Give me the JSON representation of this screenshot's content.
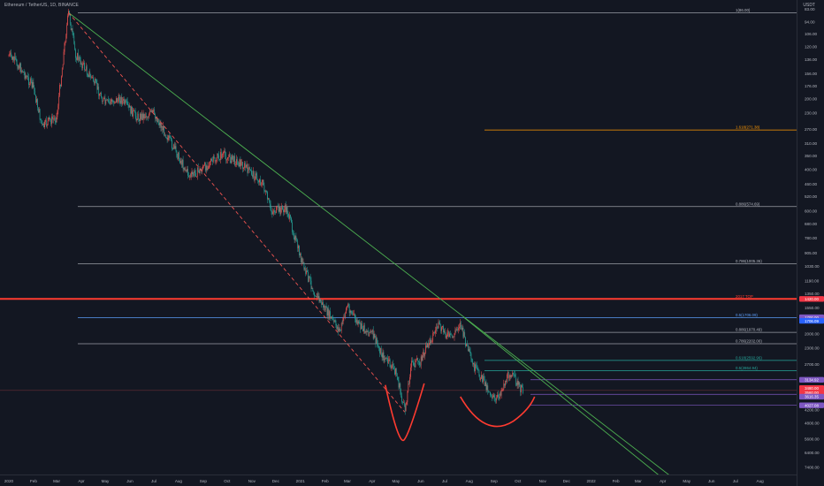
{
  "header": {
    "symbol_line": "Ethereum / TetherUS, 1D, BINANCE",
    "currency": "USDT"
  },
  "colors": {
    "background": "#131722",
    "candle_up": "#26a69a",
    "candle_down": "#ef5350",
    "trendline": "#4caf50",
    "dashed_trendline": "#ef5350",
    "horizontal_red": "#ff3b30",
    "fib_gray": "#b2b5be",
    "fib_orange": "#ff9800",
    "fib_teal": "#26a69a",
    "fib_blue": "#5b9cf6",
    "cup_curve": "#ff3b30",
    "purple_label": "#7e57c2"
  },
  "chart_data": {
    "type": "candlestick",
    "title": "Ethereum / TetherUS, 1D, BINANCE",
    "scale": "log",
    "y_axis_inverted": true,
    "grid": false,
    "xlabel": "",
    "ylabel": "",
    "x_ticks": [
      "2020",
      "Feb",
      "Mar",
      "Apr",
      "May",
      "Jun",
      "Jul",
      "Aug",
      "Sep",
      "Oct",
      "Nov",
      "Dec",
      "2021",
      "Feb",
      "Mar",
      "Apr",
      "May",
      "Jun",
      "Jul",
      "Aug",
      "Sep",
      "Oct",
      "Nov",
      "Dec",
      "2022",
      "Feb",
      "Mar",
      "Apr",
      "May",
      "Jun",
      "Jul",
      "Aug"
    ],
    "y_ticks": [
      "83.00",
      "94.00",
      "106.00",
      "120.00",
      "136.00",
      "156.00",
      "176.00",
      "200.00",
      "230.00",
      "270.00",
      "310.00",
      "350.00",
      "400.00",
      "460.00",
      "520.00",
      "600.00",
      "680.00",
      "780.00",
      "905.00",
      "1030.00",
      "1190.00",
      "1350.00",
      "1550.00",
      "1750.00",
      "2000.00",
      "2300.00",
      "2700.00",
      "3150.00",
      "3600.00",
      "4200.00",
      "4800.00",
      "5600.00",
      "6400.00",
      "7400.00"
    ],
    "price_path": [
      {
        "date": "2020-01-01",
        "close": 130
      },
      {
        "date": "2020-01-14",
        "close": 145
      },
      {
        "date": "2020-02-01",
        "close": 180
      },
      {
        "date": "2020-02-12",
        "close": 265
      },
      {
        "date": "2020-02-20",
        "close": 250
      },
      {
        "date": "2020-03-01",
        "close": 240
      },
      {
        "date": "2020-03-12",
        "close": 110
      },
      {
        "date": "2020-03-16",
        "close": 86
      },
      {
        "date": "2020-03-25",
        "close": 130
      },
      {
        "date": "2020-04-15",
        "close": 165
      },
      {
        "date": "2020-05-01",
        "close": 210
      },
      {
        "date": "2020-05-20",
        "close": 200
      },
      {
        "date": "2020-06-10",
        "close": 240
      },
      {
        "date": "2020-07-01",
        "close": 230
      },
      {
        "date": "2020-07-25",
        "close": 320
      },
      {
        "date": "2020-08-15",
        "close": 430
      },
      {
        "date": "2020-09-03",
        "close": 390
      },
      {
        "date": "2020-09-25",
        "close": 345
      },
      {
        "date": "2020-10-20",
        "close": 380
      },
      {
        "date": "2020-11-15",
        "close": 460
      },
      {
        "date": "2020-11-25",
        "close": 600
      },
      {
        "date": "2020-12-15",
        "close": 590
      },
      {
        "date": "2021-01-05",
        "close": 1050
      },
      {
        "date": "2021-01-20",
        "close": 1350
      },
      {
        "date": "2021-02-10",
        "close": 1750
      },
      {
        "date": "2021-02-20",
        "close": 1950
      },
      {
        "date": "2021-03-01",
        "close": 1500
      },
      {
        "date": "2021-03-15",
        "close": 1850
      },
      {
        "date": "2021-04-01",
        "close": 2000
      },
      {
        "date": "2021-04-15",
        "close": 2500
      },
      {
        "date": "2021-05-01",
        "close": 2900
      },
      {
        "date": "2021-05-12",
        "close": 4300
      },
      {
        "date": "2021-05-20",
        "close": 2700
      },
      {
        "date": "2021-06-01",
        "close": 2600
      },
      {
        "date": "2021-06-22",
        "close": 1850
      },
      {
        "date": "2021-07-10",
        "close": 2100
      },
      {
        "date": "2021-07-20",
        "close": 1800
      },
      {
        "date": "2021-08-05",
        "close": 2700
      },
      {
        "date": "2021-08-22",
        "close": 3300
      },
      {
        "date": "2021-09-03",
        "close": 3900
      },
      {
        "date": "2021-09-21",
        "close": 2900
      },
      {
        "date": "2021-10-01",
        "close": 3300
      },
      {
        "date": "2021-10-08",
        "close": 3560
      }
    ],
    "annotations": [
      {
        "type": "horizontal_line",
        "price": 86.0,
        "label": "1(86.00)",
        "color": "gray"
      },
      {
        "type": "horizontal_line",
        "price": 271.38,
        "label": "1.618(271.38)",
        "color": "orange"
      },
      {
        "type": "horizontal_line",
        "price": 574.69,
        "label": "0.886(574.69)",
        "color": "gray"
      },
      {
        "type": "horizontal_line",
        "price": 1005.36,
        "label": "0.786(1005.36)",
        "color": "gray"
      },
      {
        "type": "horizontal_line",
        "price": 1420.0,
        "label": "2017 TOP",
        "color": "red"
      },
      {
        "type": "horizontal_line",
        "price": 1706.09,
        "label": "0.5(1706.09)",
        "color": "blue"
      },
      {
        "type": "horizontal_line",
        "price": 1970.49,
        "label": "0.886(1970.49)",
        "color": "gray"
      },
      {
        "type": "horizontal_line",
        "price": 2202.0,
        "label": "0.786(2202.00)",
        "color": "gray"
      },
      {
        "type": "horizontal_line",
        "price": 2592.96,
        "label": "0.618(2592.96)",
        "color": "teal"
      },
      {
        "type": "horizontal_line",
        "price": 2864.94,
        "label": "0.5(2864.94)",
        "color": "teal"
      }
    ],
    "axis_badges": [
      {
        "text": "1420.00",
        "color": "red"
      },
      {
        "text": "1700.00",
        "color": "purple"
      },
      {
        "text": "1706.09",
        "color": "blue"
      },
      {
        "text": "3134.92",
        "color": "purple"
      },
      {
        "text": "3480.00",
        "color": "red"
      },
      {
        "text": "3560.00",
        "color": "red"
      },
      {
        "text": "3616.35",
        "color": "purple"
      },
      {
        "text": "4027.08",
        "color": "purple"
      }
    ]
  }
}
